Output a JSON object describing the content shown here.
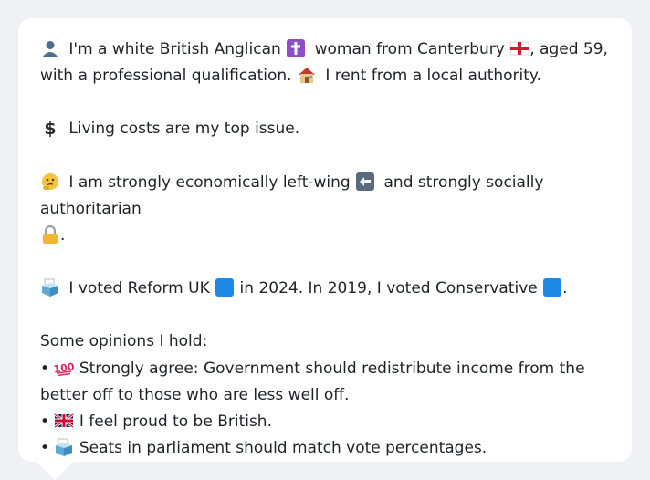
{
  "persona": {
    "intro_a": " I'm a white British Anglican ",
    "intro_b": " woman from Canterbury ",
    "intro_c": ", aged 59, with a professional qualification. ",
    "intro_d": " I rent from a local authority.",
    "issue": " Living costs are my top issue.",
    "politics_a": " I am strongly economically left-wing ",
    "politics_b": " and strongly socially authoritarian ",
    "politics_c": ".",
    "vote_a": " I voted Reform UK ",
    "vote_b": " in 2024. In 2019, I voted Conservative ",
    "vote_c": ".",
    "opinions_heading": "Some opinions I hold:",
    "opinions": [
      {
        "bullet": "•",
        "text": " Strongly agree: Government should redistribute income from the better off to those who are less well off."
      },
      {
        "bullet": "•",
        "text": " I feel proud to be British."
      },
      {
        "bullet": "•",
        "text": " Seats in parliament should match vote percentages."
      }
    ]
  },
  "icons": {
    "person": "person-icon",
    "cross": "latin-cross-icon",
    "england_flag": "england-flag-icon",
    "house": "house-icon",
    "dollar": "dollar-sign-icon",
    "thinking": "thinking-face-icon",
    "left_arrow": "left-arrow-icon",
    "lock": "lock-icon",
    "ballot": "ballot-box-icon",
    "blue_square": "blue-square-icon",
    "hundred": "hundred-points-icon",
    "uk_flag": "uk-flag-icon"
  },
  "colors": {
    "background": "#eff0f4",
    "bubble": "#ffffff",
    "text": "#1f2328",
    "cross_purple": "#8e4ec6",
    "reform_blue": "#1e88e5"
  }
}
